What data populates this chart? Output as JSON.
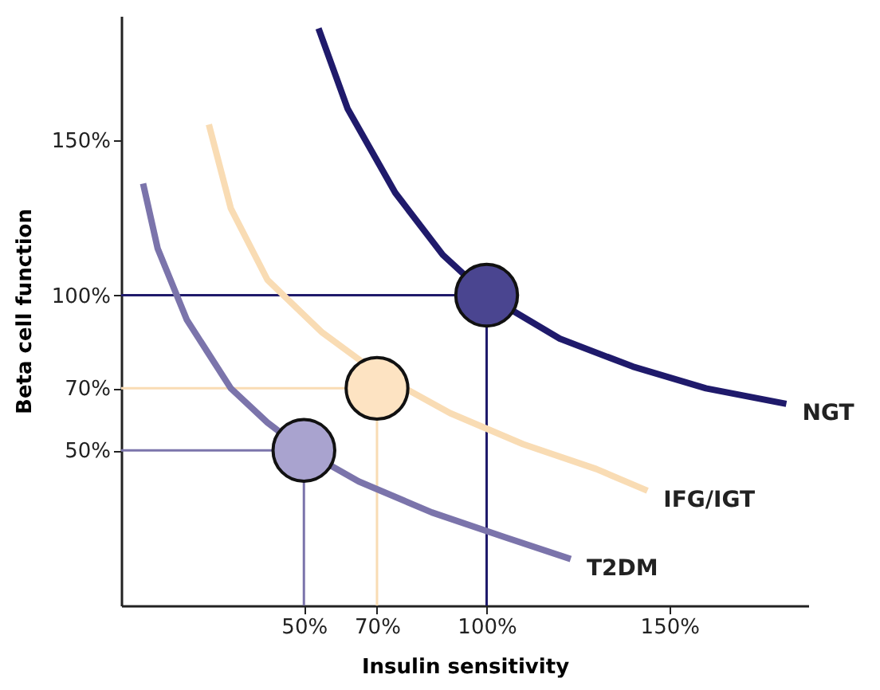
{
  "chart_data": {
    "type": "line",
    "xlabel": "Insulin sensitivity",
    "ylabel": "Beta cell function",
    "xlim": [
      0,
      188
    ],
    "ylim": [
      0,
      190
    ],
    "xticks": [
      {
        "value": 50,
        "label": "50%"
      },
      {
        "value": 70,
        "label": "70%"
      },
      {
        "value": 100,
        "label": "100%"
      },
      {
        "value": 150,
        "label": "150%"
      }
    ],
    "yticks": [
      {
        "value": 50,
        "label": "50%"
      },
      {
        "value": 70,
        "label": "70%"
      },
      {
        "value": 100,
        "label": "100%"
      },
      {
        "value": 150,
        "label": "150%"
      }
    ],
    "grid": false,
    "line_style": "solid",
    "series": [
      {
        "color": "#1f1a6b",
        "x": [
          0,
          100,
          100
        ],
        "values": [
          100,
          100,
          0
        ]
      },
      {
        "color": "#f9dcb4",
        "x": [
          0,
          70,
          70
        ],
        "values": [
          70,
          70,
          0
        ]
      },
      {
        "color": "#7b74ab",
        "x": [
          0,
          50,
          50
        ],
        "values": [
          50,
          50,
          0
        ]
      },
      {
        "name": "NGT",
        "color": "#1f1a6b",
        "x": [
          54,
          62,
          75,
          88,
          100,
          120,
          140,
          160,
          182
        ],
        "values": [
          186,
          160,
          133,
          113,
          100,
          86,
          77,
          70,
          65
        ]
      },
      {
        "name": "IFG/IGT",
        "color": "#f9dcb4",
        "x": [
          24,
          30,
          40,
          55,
          70,
          90,
          110,
          130,
          144
        ],
        "values": [
          155,
          128,
          105,
          88,
          75,
          62,
          52,
          44,
          37
        ]
      },
      {
        "name": "T2DM",
        "color": "#7b74ab",
        "x": [
          6,
          10,
          18,
          30,
          40,
          50,
          65,
          85,
          105,
          123
        ],
        "values": [
          136,
          115,
          92,
          70,
          59,
          50,
          40,
          30,
          22,
          15
        ]
      },
      {
        "type": "scatter",
        "marker": "circle",
        "colors": [
          "#4a4590",
          "#fde3c2",
          "#a9a3cf"
        ],
        "x": [
          100,
          70,
          50
        ],
        "values": [
          100,
          70,
          50
        ]
      }
    ]
  }
}
